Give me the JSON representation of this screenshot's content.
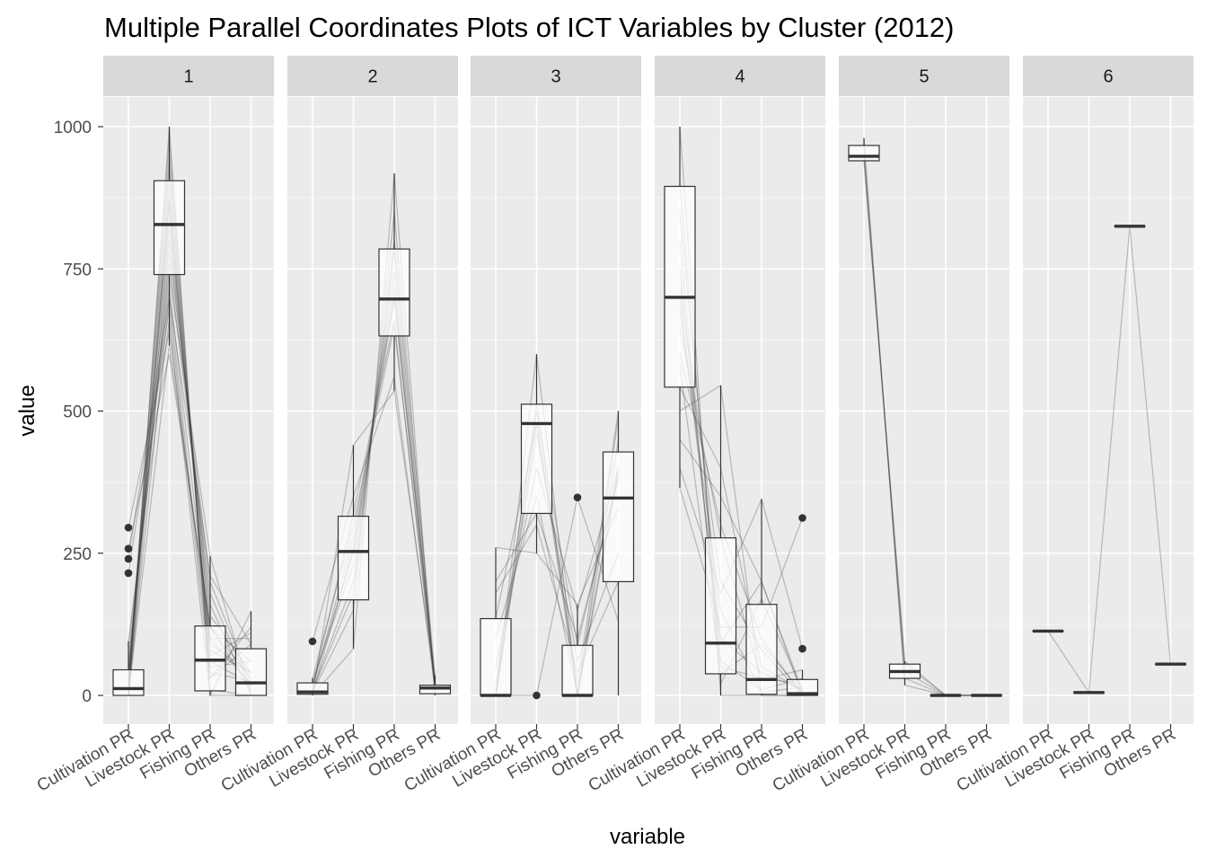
{
  "chart_data": {
    "type": "parallel-coordinates-boxplot",
    "title": "Multiple Parallel Coordinates Plots of ICT Variables by Cluster (2012)",
    "xlabel": "variable",
    "ylabel": "value",
    "ylim": [
      0,
      1000
    ],
    "y_ticks": [
      0,
      250,
      500,
      750,
      1000
    ],
    "variables": [
      "Cultivation PR",
      "Livestock PR",
      "Fishing PR",
      "Others PR"
    ],
    "grid": true,
    "facets": [
      {
        "label": "1",
        "boxes": [
          {
            "variable": "Cultivation PR",
            "q1": 0,
            "median": 12,
            "q3": 45,
            "whisker_low": 0,
            "whisker_high": 95,
            "outliers": [
              295,
              258,
              240,
              215
            ]
          },
          {
            "variable": "Livestock PR",
            "q1": 740,
            "median": 828,
            "q3": 905,
            "whisker_low": 615,
            "whisker_high": 1000,
            "outliers": []
          },
          {
            "variable": "Fishing PR",
            "q1": 8,
            "median": 62,
            "q3": 122,
            "whisker_low": 0,
            "whisker_high": 245,
            "outliers": []
          },
          {
            "variable": "Others PR",
            "q1": 0,
            "median": 22,
            "q3": 82,
            "whisker_low": 0,
            "whisker_high": 148,
            "outliers": []
          }
        ],
        "lines": [
          [
            295,
            640,
            90,
            40
          ],
          [
            258,
            600,
            120,
            30
          ],
          [
            240,
            700,
            50,
            60
          ],
          [
            215,
            680,
            30,
            90
          ],
          [
            0,
            1000,
            0,
            0
          ],
          [
            10,
            980,
            10,
            0
          ],
          [
            5,
            930,
            40,
            25
          ],
          [
            20,
            900,
            60,
            20
          ],
          [
            0,
            880,
            100,
            20
          ],
          [
            15,
            860,
            80,
            40
          ],
          [
            30,
            840,
            120,
            10
          ],
          [
            0,
            820,
            140,
            40
          ],
          [
            40,
            800,
            160,
            0
          ],
          [
            0,
            780,
            200,
            20
          ],
          [
            50,
            760,
            180,
            10
          ],
          [
            60,
            740,
            245,
            0
          ],
          [
            80,
            720,
            100,
            100
          ],
          [
            0,
            700,
            210,
            90
          ],
          [
            95,
            660,
            0,
            148
          ],
          [
            0,
            615,
            120,
            60
          ],
          [
            25,
            950,
            30,
            120
          ],
          [
            35,
            870,
            70,
            110
          ]
        ]
      },
      {
        "label": "2",
        "boxes": [
          {
            "variable": "Cultivation PR",
            "q1": 2,
            "median": 6,
            "q3": 22,
            "whisker_low": 0,
            "whisker_high": 30,
            "outliers": [
              95
            ]
          },
          {
            "variable": "Livestock PR",
            "q1": 168,
            "median": 253,
            "q3": 315,
            "whisker_low": 82,
            "whisker_high": 440,
            "outliers": []
          },
          {
            "variable": "Fishing PR",
            "q1": 632,
            "median": 697,
            "q3": 785,
            "whisker_low": 535,
            "whisker_high": 918,
            "outliers": []
          },
          {
            "variable": "Others PR",
            "q1": 3,
            "median": 13,
            "q3": 18,
            "whisker_low": 0,
            "whisker_high": 35,
            "outliers": []
          }
        ],
        "lines": [
          [
            0,
            82,
            918,
            0
          ],
          [
            5,
            150,
            850,
            5
          ],
          [
            10,
            200,
            780,
            10
          ],
          [
            20,
            253,
            697,
            30
          ],
          [
            30,
            300,
            650,
            20
          ],
          [
            0,
            440,
            535,
            25
          ],
          [
            95,
            350,
            560,
            10
          ],
          [
            8,
            180,
            800,
            35
          ],
          [
            2,
            260,
            720,
            15
          ],
          [
            15,
            320,
            660,
            5
          ],
          [
            25,
            230,
            745,
            18
          ],
          [
            12,
            280,
            700,
            12
          ]
        ]
      },
      {
        "label": "3",
        "boxes": [
          {
            "variable": "Cultivation PR",
            "q1": 0,
            "median": 0,
            "q3": 135,
            "whisker_low": 0,
            "whisker_high": 260,
            "outliers": []
          },
          {
            "variable": "Livestock PR",
            "q1": 320,
            "median": 478,
            "q3": 512,
            "whisker_low": 250,
            "whisker_high": 600,
            "outliers": [
              0
            ]
          },
          {
            "variable": "Fishing PR",
            "q1": 0,
            "median": 0,
            "q3": 88,
            "whisker_low": 0,
            "whisker_high": 160,
            "outliers": [
              348
            ]
          },
          {
            "variable": "Others PR",
            "q1": 200,
            "median": 347,
            "q3": 428,
            "whisker_low": 0,
            "whisker_high": 500,
            "outliers": []
          }
        ],
        "lines": [
          [
            0,
            600,
            0,
            400
          ],
          [
            0,
            512,
            0,
            488
          ],
          [
            0,
            480,
            20,
            500
          ],
          [
            135,
            478,
            0,
            387
          ],
          [
            260,
            250,
            160,
            330
          ],
          [
            200,
            320,
            100,
            380
          ],
          [
            50,
            400,
            150,
            400
          ],
          [
            0,
            0,
            348,
            130
          ],
          [
            100,
            350,
            0,
            450
          ],
          [
            20,
            500,
            88,
            392
          ],
          [
            0,
            460,
            60,
            250
          ],
          [
            180,
            300,
            40,
            200
          ]
        ]
      },
      {
        "label": "4",
        "boxes": [
          {
            "variable": "Cultivation PR",
            "q1": 542,
            "median": 700,
            "q3": 895,
            "whisker_low": 365,
            "whisker_high": 1000,
            "outliers": []
          },
          {
            "variable": "Livestock PR",
            "q1": 38,
            "median": 92,
            "q3": 277,
            "whisker_low": 0,
            "whisker_high": 545,
            "outliers": []
          },
          {
            "variable": "Fishing PR",
            "q1": 2,
            "median": 28,
            "q3": 160,
            "whisker_low": 0,
            "whisker_high": 345,
            "outliers": []
          },
          {
            "variable": "Others PR",
            "q1": 0,
            "median": 3,
            "q3": 28,
            "whisker_low": 0,
            "whisker_high": 45,
            "outliers": [
              312,
              82
            ]
          }
        ],
        "lines": [
          [
            1000,
            0,
            0,
            0
          ],
          [
            900,
            50,
            30,
            20
          ],
          [
            850,
            100,
            40,
            10
          ],
          [
            800,
            20,
            170,
            10
          ],
          [
            720,
            200,
            80,
            0
          ],
          [
            700,
            92,
            200,
            8
          ],
          [
            650,
            277,
            28,
            45
          ],
          [
            600,
            300,
            100,
            0
          ],
          [
            542,
            400,
            50,
            8
          ],
          [
            500,
            545,
            0,
            0
          ],
          [
            450,
            350,
            200,
            0
          ],
          [
            400,
            180,
            345,
            82
          ],
          [
            365,
            120,
            120,
            312
          ],
          [
            750,
            60,
            10,
            30
          ],
          [
            680,
            150,
            5,
            15
          ],
          [
            580,
            38,
            90,
            5
          ]
        ]
      },
      {
        "label": "5",
        "boxes": [
          {
            "variable": "Cultivation PR",
            "q1": 940,
            "median": 948,
            "q3": 967,
            "whisker_low": 940,
            "whisker_high": 980,
            "outliers": []
          },
          {
            "variable": "Livestock PR",
            "q1": 30,
            "median": 42,
            "q3": 55,
            "whisker_low": 18,
            "whisker_high": 60,
            "outliers": []
          },
          {
            "variable": "Fishing PR",
            "q1": 0,
            "median": 0,
            "q3": 0,
            "whisker_low": 0,
            "whisker_high": 0,
            "outliers": []
          },
          {
            "variable": "Others PR",
            "q1": 0,
            "median": 0,
            "q3": 0,
            "whisker_low": 0,
            "whisker_high": 0,
            "outliers": []
          }
        ],
        "lines": [
          [
            980,
            18,
            0,
            0
          ],
          [
            967,
            30,
            0,
            0
          ],
          [
            948,
            42,
            0,
            0
          ],
          [
            940,
            55,
            0,
            0
          ],
          [
            945,
            60,
            0,
            0
          ]
        ]
      },
      {
        "label": "6",
        "boxes": [
          {
            "variable": "Cultivation PR",
            "q1": 113,
            "median": 113,
            "q3": 113,
            "whisker_low": 113,
            "whisker_high": 113,
            "outliers": []
          },
          {
            "variable": "Livestock PR",
            "q1": 5,
            "median": 5,
            "q3": 5,
            "whisker_low": 5,
            "whisker_high": 5,
            "outliers": []
          },
          {
            "variable": "Fishing PR",
            "q1": 825,
            "median": 825,
            "q3": 825,
            "whisker_low": 825,
            "whisker_high": 825,
            "outliers": []
          },
          {
            "variable": "Others PR",
            "q1": 55,
            "median": 55,
            "q3": 55,
            "whisker_low": 55,
            "whisker_high": 55,
            "outliers": []
          }
        ],
        "lines": [
          [
            113,
            5,
            825,
            55
          ]
        ]
      }
    ]
  }
}
